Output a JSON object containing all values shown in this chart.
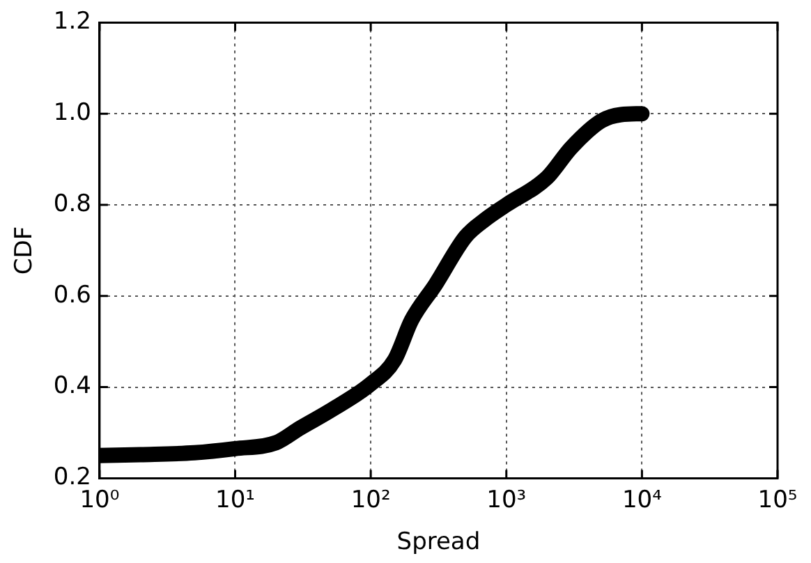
{
  "chart_data": {
    "type": "line",
    "xlabel": "Spread",
    "ylabel": "CDF",
    "log": "x",
    "grid": true,
    "legend": false,
    "marker": "none",
    "line_style": "solid",
    "xlim": [
      1,
      100000
    ],
    "xticks": [
      {
        "value": 1,
        "label": "10⁰"
      },
      {
        "value": 10,
        "label": "10¹"
      },
      {
        "value": 100,
        "label": "10²"
      },
      {
        "value": 1000,
        "label": "10³"
      },
      {
        "value": 10000,
        "label": "10⁴"
      },
      {
        "value": 100000,
        "label": "10⁵"
      }
    ],
    "ylim": [
      0.2,
      1.2
    ],
    "yticks": [
      {
        "value": 0.2,
        "label": "0.2"
      },
      {
        "value": 0.4,
        "label": "0.4"
      },
      {
        "value": 0.6,
        "label": "0.6"
      },
      {
        "value": 0.8,
        "label": "0.8"
      },
      {
        "value": 1.0,
        "label": "1.0"
      },
      {
        "value": 1.2,
        "label": "1.2"
      }
    ],
    "series": [
      {
        "color": "#000000",
        "x": [
          1,
          2,
          5,
          10,
          20,
          30,
          50,
          100,
          150,
          200,
          300,
          500,
          700,
          1000,
          2000,
          3000,
          5000,
          7000,
          10000
        ],
        "values": [
          0.25,
          0.252,
          0.256,
          0.265,
          0.278,
          0.31,
          0.348,
          0.407,
          0.46,
          0.547,
          0.625,
          0.73,
          0.768,
          0.8,
          0.86,
          0.925,
          0.984,
          0.998,
          1.0
        ]
      }
    ]
  }
}
